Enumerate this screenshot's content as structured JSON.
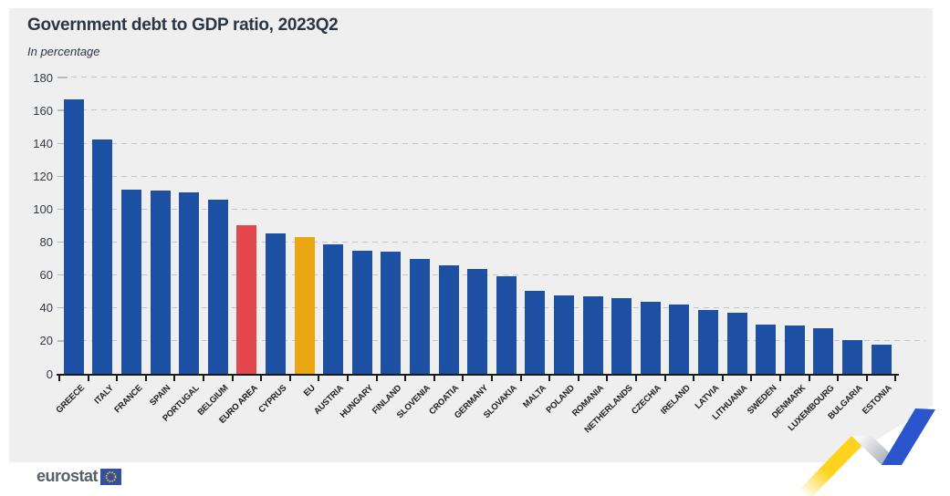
{
  "header": {
    "title": "Government debt to GDP ratio, 2023Q2",
    "subtitle": "In percentage"
  },
  "chart_data": {
    "type": "bar",
    "title": "Government debt to GDP ratio, 2023Q2",
    "subtitle": "In percentage",
    "unit": "percentage of GDP",
    "categories": [
      "GREECE",
      "ITALY",
      "FRANCE",
      "SPAIN",
      "PORTUGAL",
      "BELGIUM",
      "EURO AREA",
      "CYPRUS",
      "EU",
      "AUSTRIA",
      "HUNGARY",
      "FINLAND",
      "SLOVENIA",
      "CROATIA",
      "GERMANY",
      "SLOVAKIA",
      "MALTA",
      "POLAND",
      "ROMANIA",
      "NETHERLANDS",
      "CZECHIA",
      "IRELAND",
      "LATVIA",
      "LITHUANIA",
      "SWEDEN",
      "DENMARK",
      "LUXEMBOURG",
      "BULGARIA",
      "ESTONIA"
    ],
    "values": [
      166.5,
      142.4,
      111.9,
      111.2,
      110.1,
      106.0,
      90.3,
      85.2,
      83.1,
      78.5,
      74.8,
      74.0,
      70.0,
      65.8,
      63.7,
      59.2,
      50.2,
      47.8,
      47.2,
      45.9,
      43.5,
      42.2,
      38.9,
      37.1,
      29.9,
      29.2,
      27.5,
      20.4,
      17.9
    ],
    "ylim": [
      0,
      180
    ],
    "yticks": [
      180,
      160,
      140,
      120,
      100,
      80,
      60,
      40,
      20,
      0
    ],
    "grid": "horizontal dashed",
    "legend": "none",
    "bar_color": "#1d4fa3",
    "highlight_colors": {
      "EURO AREA": "#e4484e",
      "EU": "#eaa713"
    },
    "bold_categories": [
      "EURO AREA",
      "EU"
    ]
  },
  "footer": {
    "logo_text": "eurostat"
  },
  "colors": {
    "card_background": "#efefef",
    "page_background": "#ffffff",
    "title_text": "#2b3645",
    "axis_text": "#333a44",
    "axis_line": "#1a1a1a",
    "gridline": "#c6c6c6",
    "ribbon_yellow": "#ffd21e",
    "ribbon_blue": "#2b55cc",
    "ribbon_silver": "#9ca2ae",
    "logo_text_color": "#595f68",
    "logo_flag_blue": "#33519e",
    "logo_stars_yellow": "#ffcc00"
  }
}
